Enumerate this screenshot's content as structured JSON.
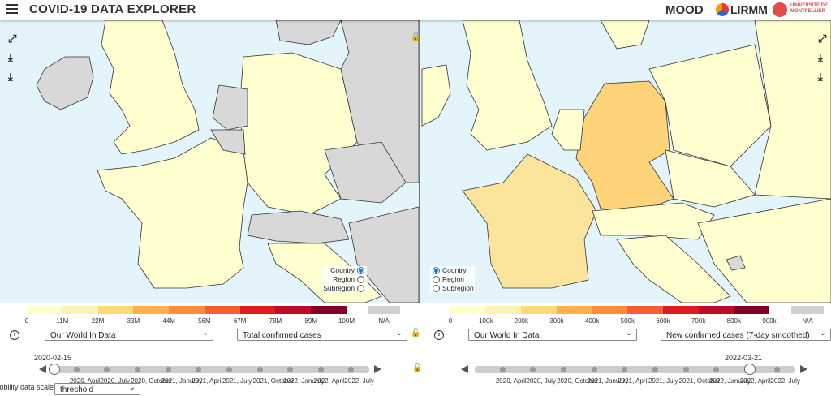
{
  "header": {
    "title": "COVID-19 DATA EXPLORER",
    "logos": [
      "MOOD",
      "LIRMM",
      "UNIVERSITÉ DE MONTPELLIER"
    ]
  },
  "left_panel": {
    "legend": {
      "labels": [
        "0",
        "11M",
        "22M",
        "33M",
        "44M",
        "56M",
        "67M",
        "78M",
        "89M",
        "100M"
      ],
      "na": "N/A"
    },
    "granularity": [
      "Country",
      "Region",
      "Subregion"
    ],
    "source": "Our World In Data",
    "indicator": "Total confirmed cases",
    "date": "2020-02-15",
    "timeline": [
      "2020, April",
      "2020, July",
      "2020, October",
      "2021, January",
      "2021, April",
      "2021, July",
      "2021, October",
      "2022, January",
      "2022, April",
      "2022, July"
    ]
  },
  "right_panel": {
    "legend": {
      "labels": [
        "0",
        "100k",
        "200k",
        "300k",
        "400k",
        "500k",
        "600k",
        "700k",
        "800k",
        "900k"
      ],
      "na": "N/A"
    },
    "granularity": [
      "Country",
      "Region",
      "Subregion"
    ],
    "source": "Our World In Data",
    "indicator": "New confirmed cases (7-day smoothed)",
    "date": "2022-03-21",
    "timeline": [
      "2020, April",
      "2020, July",
      "2020, October",
      "2021, January",
      "2021, April",
      "2021, July",
      "2021, October",
      "2022, January",
      "2022, April",
      "2022, July"
    ]
  },
  "mobility": {
    "label": "Mobility data scale :",
    "value": "threshold"
  }
}
